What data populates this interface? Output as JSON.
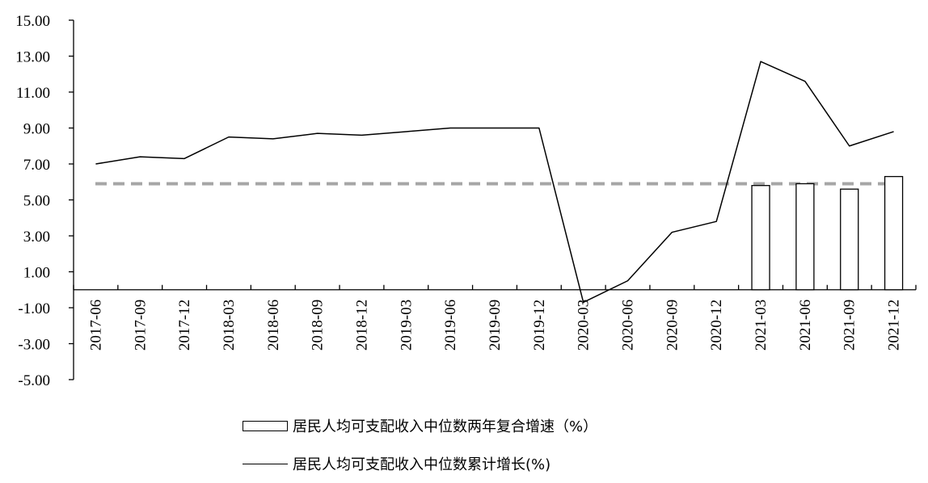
{
  "chart_data": {
    "type": "bar",
    "categories": [
      "2017-06",
      "2017-09",
      "2017-12",
      "2018-03",
      "2018-06",
      "2018-09",
      "2018-12",
      "2019-03",
      "2019-06",
      "2019-09",
      "2019-12",
      "2020-03",
      "2020-06",
      "2020-09",
      "2020-12",
      "2021-03",
      "2021-06",
      "2021-09",
      "2021-12"
    ],
    "series": [
      {
        "name": "居民人均可支配收入中位数两年复合增速（%）",
        "type": "bar",
        "values": [
          null,
          null,
          null,
          null,
          null,
          null,
          null,
          null,
          null,
          null,
          null,
          null,
          null,
          null,
          null,
          5.8,
          5.9,
          5.6,
          6.3
        ]
      },
      {
        "name": "居民人均可支配收入中位数累计增长(%)",
        "type": "line",
        "color": "#000000",
        "values": [
          7.0,
          7.4,
          7.3,
          8.5,
          8.4,
          8.7,
          8.6,
          8.8,
          9.0,
          9.0,
          9.0,
          -0.7,
          0.5,
          3.2,
          3.8,
          12.7,
          11.6,
          8.0,
          8.8
        ]
      }
    ],
    "reference_line": {
      "value": 5.9,
      "style": "dashed",
      "color": "#a6a6a6"
    },
    "ylim": [
      -5,
      15
    ],
    "yticks": [
      "15.00",
      "13.00",
      "11.00",
      "9.00",
      "7.00",
      "5.00",
      "3.00",
      "1.00",
      "-1.00",
      "-3.00",
      "-5.00"
    ],
    "xlabel": "",
    "ylabel": "",
    "title": "",
    "grid": false,
    "legend_position": "bottom"
  }
}
